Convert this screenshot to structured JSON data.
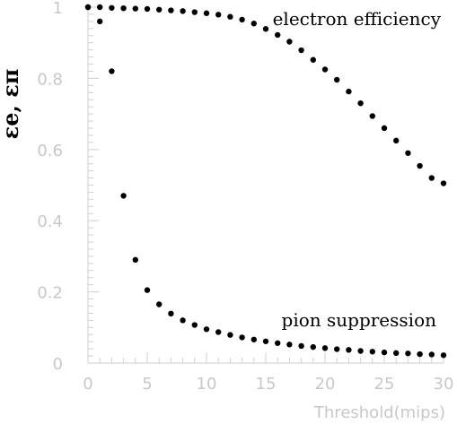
{
  "chart_data": {
    "type": "scatter",
    "title": "",
    "xlabel": "Threshold(mips)",
    "ylabel": "εe, επ",
    "xlim": [
      0,
      30
    ],
    "ylim": [
      0,
      1
    ],
    "xticks": [
      "0",
      "5",
      "10",
      "15",
      "20",
      "25",
      "30"
    ],
    "yticks": [
      "0",
      "0.2",
      "0.4",
      "0.6",
      "0.8",
      "1"
    ],
    "grid": false,
    "series": [
      {
        "name": "electron efficiency",
        "x": [
          0,
          1,
          2,
          3,
          4,
          5,
          6,
          7,
          8,
          9,
          10,
          11,
          12,
          13,
          14,
          15,
          16,
          17,
          18,
          19,
          20,
          21,
          22,
          23,
          24,
          25,
          26,
          27,
          28,
          29,
          30
        ],
        "y": [
          1.0,
          1.0,
          0.998,
          0.997,
          0.996,
          0.995,
          0.993,
          0.991,
          0.989,
          0.986,
          0.983,
          0.979,
          0.973,
          0.965,
          0.954,
          0.939,
          0.922,
          0.903,
          0.879,
          0.852,
          0.825,
          0.796,
          0.763,
          0.73,
          0.694,
          0.66,
          0.625,
          0.59,
          0.554,
          0.52,
          0.505
        ]
      },
      {
        "name": "pion suppression",
        "x": [
          0,
          1,
          2,
          3,
          4,
          5,
          6,
          7,
          8,
          9,
          10,
          11,
          12,
          13,
          14,
          15,
          16,
          17,
          18,
          19,
          20,
          21,
          22,
          23,
          24,
          25,
          26,
          27,
          28,
          29,
          30
        ],
        "y": [
          1.0,
          0.96,
          0.82,
          0.47,
          0.29,
          0.205,
          0.165,
          0.139,
          0.12,
          0.107,
          0.095,
          0.087,
          0.079,
          0.072,
          0.066,
          0.061,
          0.056,
          0.052,
          0.048,
          0.045,
          0.042,
          0.039,
          0.037,
          0.034,
          0.032,
          0.03,
          0.028,
          0.027,
          0.025,
          0.024,
          0.022
        ]
      }
    ],
    "annotations": [
      "electron efficiency",
      "pion suppression"
    ]
  }
}
